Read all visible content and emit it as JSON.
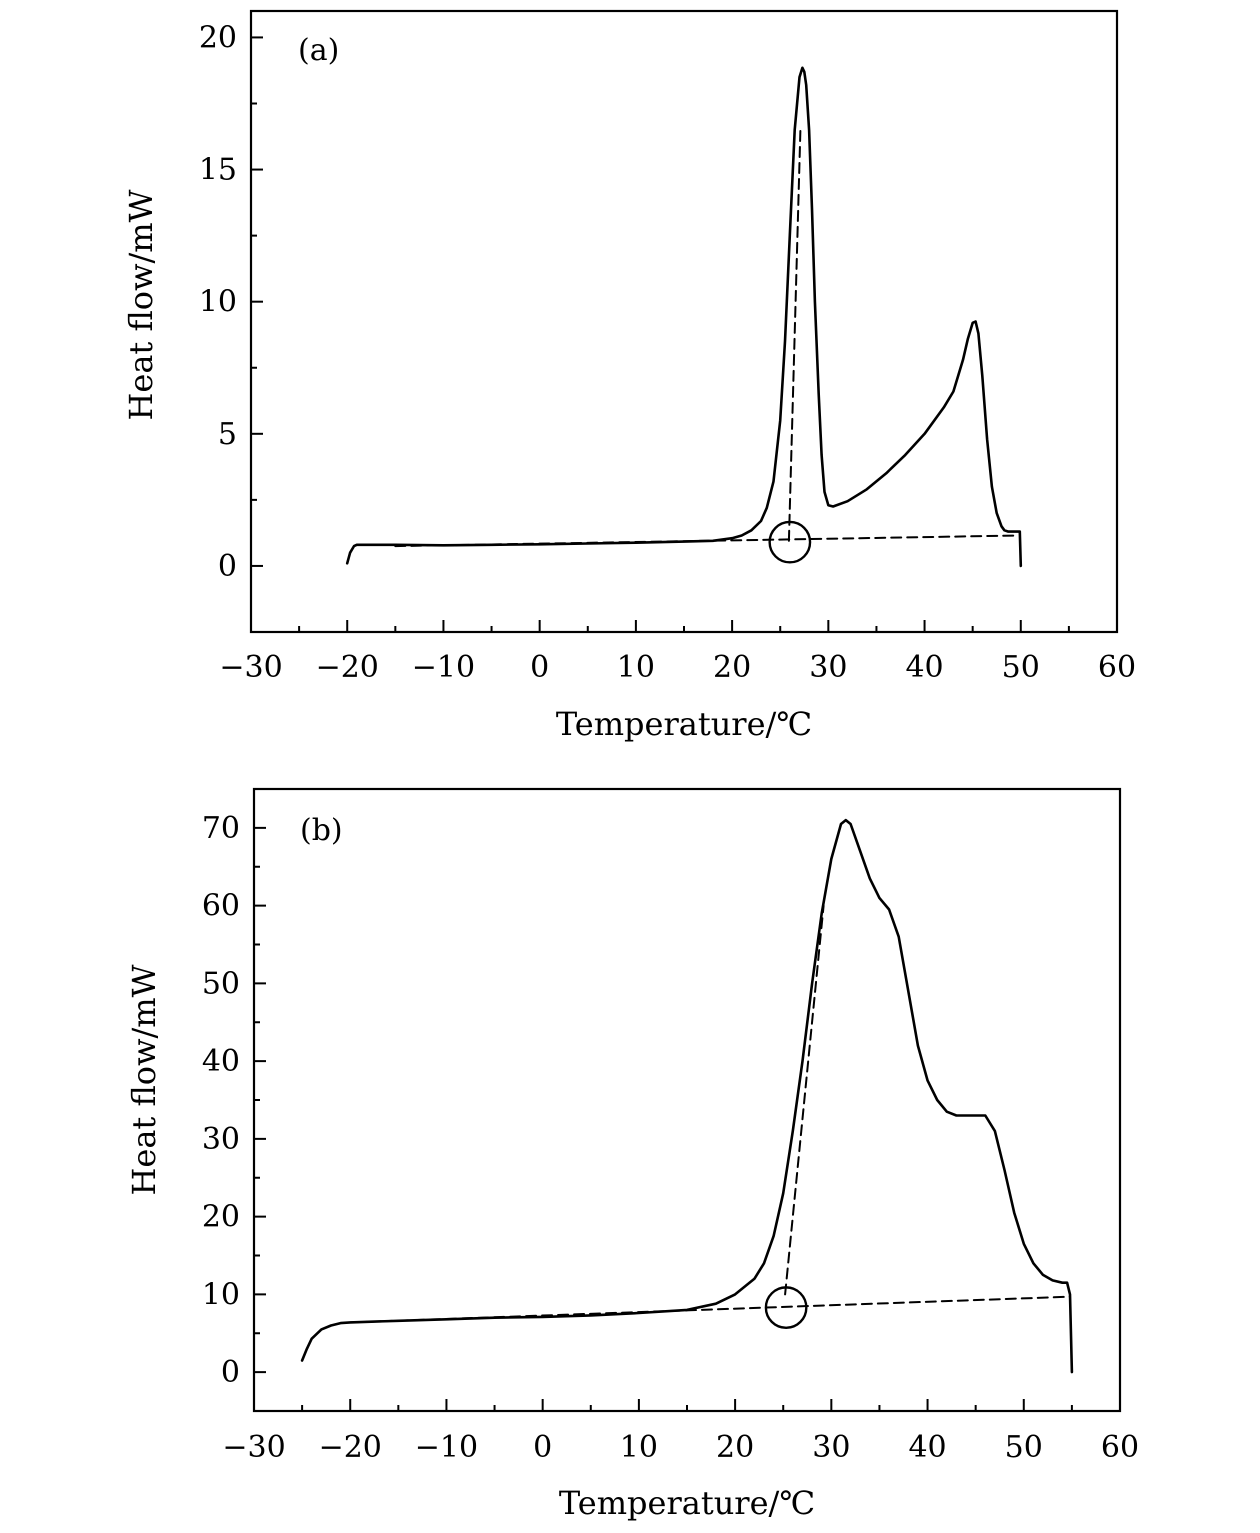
{
  "chart_data": [
    {
      "type": "line",
      "panel_label": "(a)",
      "xlabel": "Temperature/℃",
      "ylabel": "Heat flow/mW",
      "xlim": [
        -30,
        60
      ],
      "ylim": [
        -2.5,
        21
      ],
      "x_ticks": [
        -30,
        -20,
        -10,
        0,
        10,
        20,
        30,
        40,
        50,
        60
      ],
      "x_tick_labels": [
        "−30",
        "−20",
        "−10",
        "0",
        "10",
        "20",
        "30",
        "40",
        "50",
        "60"
      ],
      "y_ticks": [
        0,
        5,
        10,
        15,
        20
      ],
      "y_tick_labels": [
        "0",
        "5",
        "10",
        "15",
        "20"
      ],
      "grid": false,
      "legend": "none",
      "series": [
        {
          "style": "solid",
          "x": [
            -20,
            -19.7,
            -19.3,
            -19,
            -15,
            -10,
            -5,
            0,
            5,
            10,
            15,
            18,
            20,
            21,
            22,
            23,
            23.6,
            24.3,
            25,
            25.5,
            26,
            26.5,
            27,
            27.3,
            27.5,
            27.7,
            28,
            28.3,
            28.6,
            29,
            29.3,
            29.6,
            30,
            30.5,
            32,
            34,
            36,
            38,
            40,
            42,
            43,
            44,
            44.5,
            45,
            45.3,
            45.6,
            46,
            46.5,
            47,
            47.5,
            48,
            48.3,
            48.7,
            49,
            49.5,
            49.9,
            50
          ],
          "y": [
            0.1,
            0.5,
            0.75,
            0.8,
            0.8,
            0.78,
            0.8,
            0.82,
            0.85,
            0.88,
            0.92,
            0.95,
            1.05,
            1.15,
            1.35,
            1.7,
            2.2,
            3.2,
            5.5,
            8.5,
            12.5,
            16.5,
            18.5,
            18.85,
            18.7,
            18.2,
            16.5,
            13.5,
            10,
            6.5,
            4.2,
            2.8,
            2.3,
            2.25,
            2.45,
            2.9,
            3.5,
            4.2,
            5.0,
            6.0,
            6.6,
            7.8,
            8.6,
            9.2,
            9.25,
            8.8,
            7.2,
            4.8,
            3.0,
            2.0,
            1.5,
            1.35,
            1.3,
            1.3,
            1.3,
            1.3,
            0.0
          ]
        },
        {
          "style": "dashed",
          "x": [
            -15,
            49.8
          ],
          "y": [
            0.75,
            1.15
          ]
        },
        {
          "style": "dashed",
          "x": [
            25.9,
            27.1
          ],
          "y": [
            0.95,
            16.5
          ]
        }
      ],
      "annotations": [
        {
          "type": "circle",
          "x": 26.0,
          "y": 0.9,
          "r_x_units": 2.1
        }
      ]
    },
    {
      "type": "line",
      "panel_label": "(b)",
      "xlabel": "Temperature/℃",
      "ylabel": "Heat flow/mW",
      "xlim": [
        -30,
        60
      ],
      "ylim": [
        -5,
        75
      ],
      "x_ticks": [
        -30,
        -20,
        -10,
        0,
        10,
        20,
        30,
        40,
        50,
        60
      ],
      "x_tick_labels": [
        "−30",
        "−20",
        "−10",
        "0",
        "10",
        "20",
        "30",
        "40",
        "50",
        "60"
      ],
      "y_ticks": [
        0,
        10,
        20,
        30,
        40,
        50,
        60,
        70
      ],
      "y_tick_labels": [
        "0",
        "10",
        "20",
        "30",
        "40",
        "50",
        "60",
        "70"
      ],
      "grid": false,
      "legend": "none",
      "series": [
        {
          "style": "solid",
          "x": [
            -25,
            -24.5,
            -24,
            -23,
            -22,
            -21,
            -20,
            -15,
            -10,
            -5,
            0,
            5,
            10,
            15,
            18,
            20,
            22,
            23,
            24,
            25,
            26,
            27,
            28,
            29,
            30,
            31,
            31.5,
            32,
            33,
            34,
            35,
            36,
            37,
            38,
            39,
            40,
            41,
            42,
            43,
            44,
            45,
            46,
            47,
            48,
            49,
            50,
            51,
            52,
            53,
            54,
            54.5,
            54.8,
            55
          ],
          "y": [
            1.5,
            3.0,
            4.3,
            5.5,
            6.0,
            6.3,
            6.4,
            6.6,
            6.8,
            7.0,
            7.1,
            7.3,
            7.6,
            8.0,
            8.8,
            10.0,
            12.0,
            14.0,
            17.5,
            23.0,
            31.0,
            40.0,
            50.0,
            59.0,
            66.0,
            70.5,
            71.0,
            70.5,
            67.0,
            63.5,
            61.0,
            59.5,
            56.0,
            49.0,
            42.0,
            37.5,
            35.0,
            33.5,
            33.0,
            33.0,
            33.0,
            33.0,
            31.0,
            26.0,
            20.5,
            16.5,
            14.0,
            12.5,
            11.8,
            11.5,
            11.5,
            10.0,
            0.0
          ]
        },
        {
          "style": "dashed",
          "x": [
            -20,
            54.8
          ],
          "y": [
            6.4,
            9.7
          ]
        },
        {
          "style": "dashed",
          "x": [
            25.2,
            29.2
          ],
          "y": [
            10.0,
            60.0
          ]
        }
      ],
      "annotations": [
        {
          "type": "circle",
          "x": 25.3,
          "y": 8.3,
          "r_x_units": 2.1
        }
      ]
    }
  ]
}
